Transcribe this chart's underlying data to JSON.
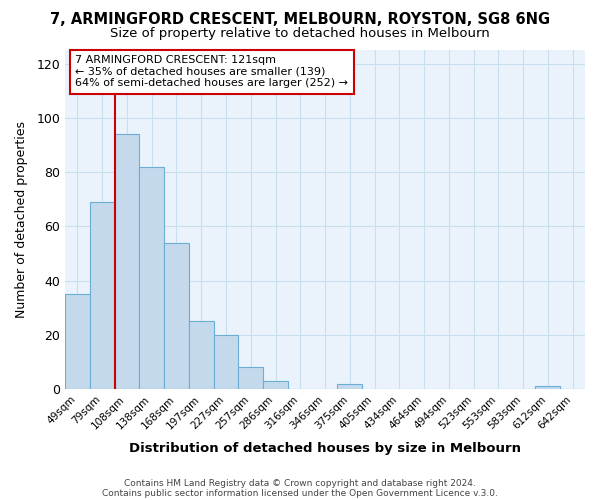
{
  "title": "7, ARMINGFORD CRESCENT, MELBOURN, ROYSTON, SG8 6NG",
  "subtitle": "Size of property relative to detached houses in Melbourn",
  "xlabel": "Distribution of detached houses by size in Melbourn",
  "ylabel": "Number of detached properties",
  "bar_labels": [
    "49sqm",
    "79sqm",
    "108sqm",
    "138sqm",
    "168sqm",
    "197sqm",
    "227sqm",
    "257sqm",
    "286sqm",
    "316sqm",
    "346sqm",
    "375sqm",
    "405sqm",
    "434sqm",
    "464sqm",
    "494sqm",
    "523sqm",
    "553sqm",
    "583sqm",
    "612sqm",
    "642sqm"
  ],
  "bar_values": [
    35,
    69,
    94,
    82,
    54,
    25,
    20,
    8,
    3,
    0,
    0,
    2,
    0,
    0,
    0,
    0,
    0,
    0,
    0,
    1,
    0
  ],
  "bar_color": "#c5d9ed",
  "bar_edge_color": "#6aaed6",
  "highlight_bar_index": 2,
  "vline_color": "#cc0000",
  "ylim": [
    0,
    125
  ],
  "yticks": [
    0,
    20,
    40,
    60,
    80,
    100,
    120
  ],
  "annotation_title": "7 ARMINGFORD CRESCENT: 121sqm",
  "annotation_line1": "← 35% of detached houses are smaller (139)",
  "annotation_line2": "64% of semi-detached houses are larger (252) →",
  "footer1": "Contains HM Land Registry data © Crown copyright and database right 2024.",
  "footer2": "Contains public sector information licensed under the Open Government Licence v.3.0.",
  "title_fontsize": 10.5,
  "subtitle_fontsize": 9.5,
  "background_color": "#ffffff",
  "plot_bg_color": "#eaf3fb",
  "grid_color": "#c8dff0"
}
